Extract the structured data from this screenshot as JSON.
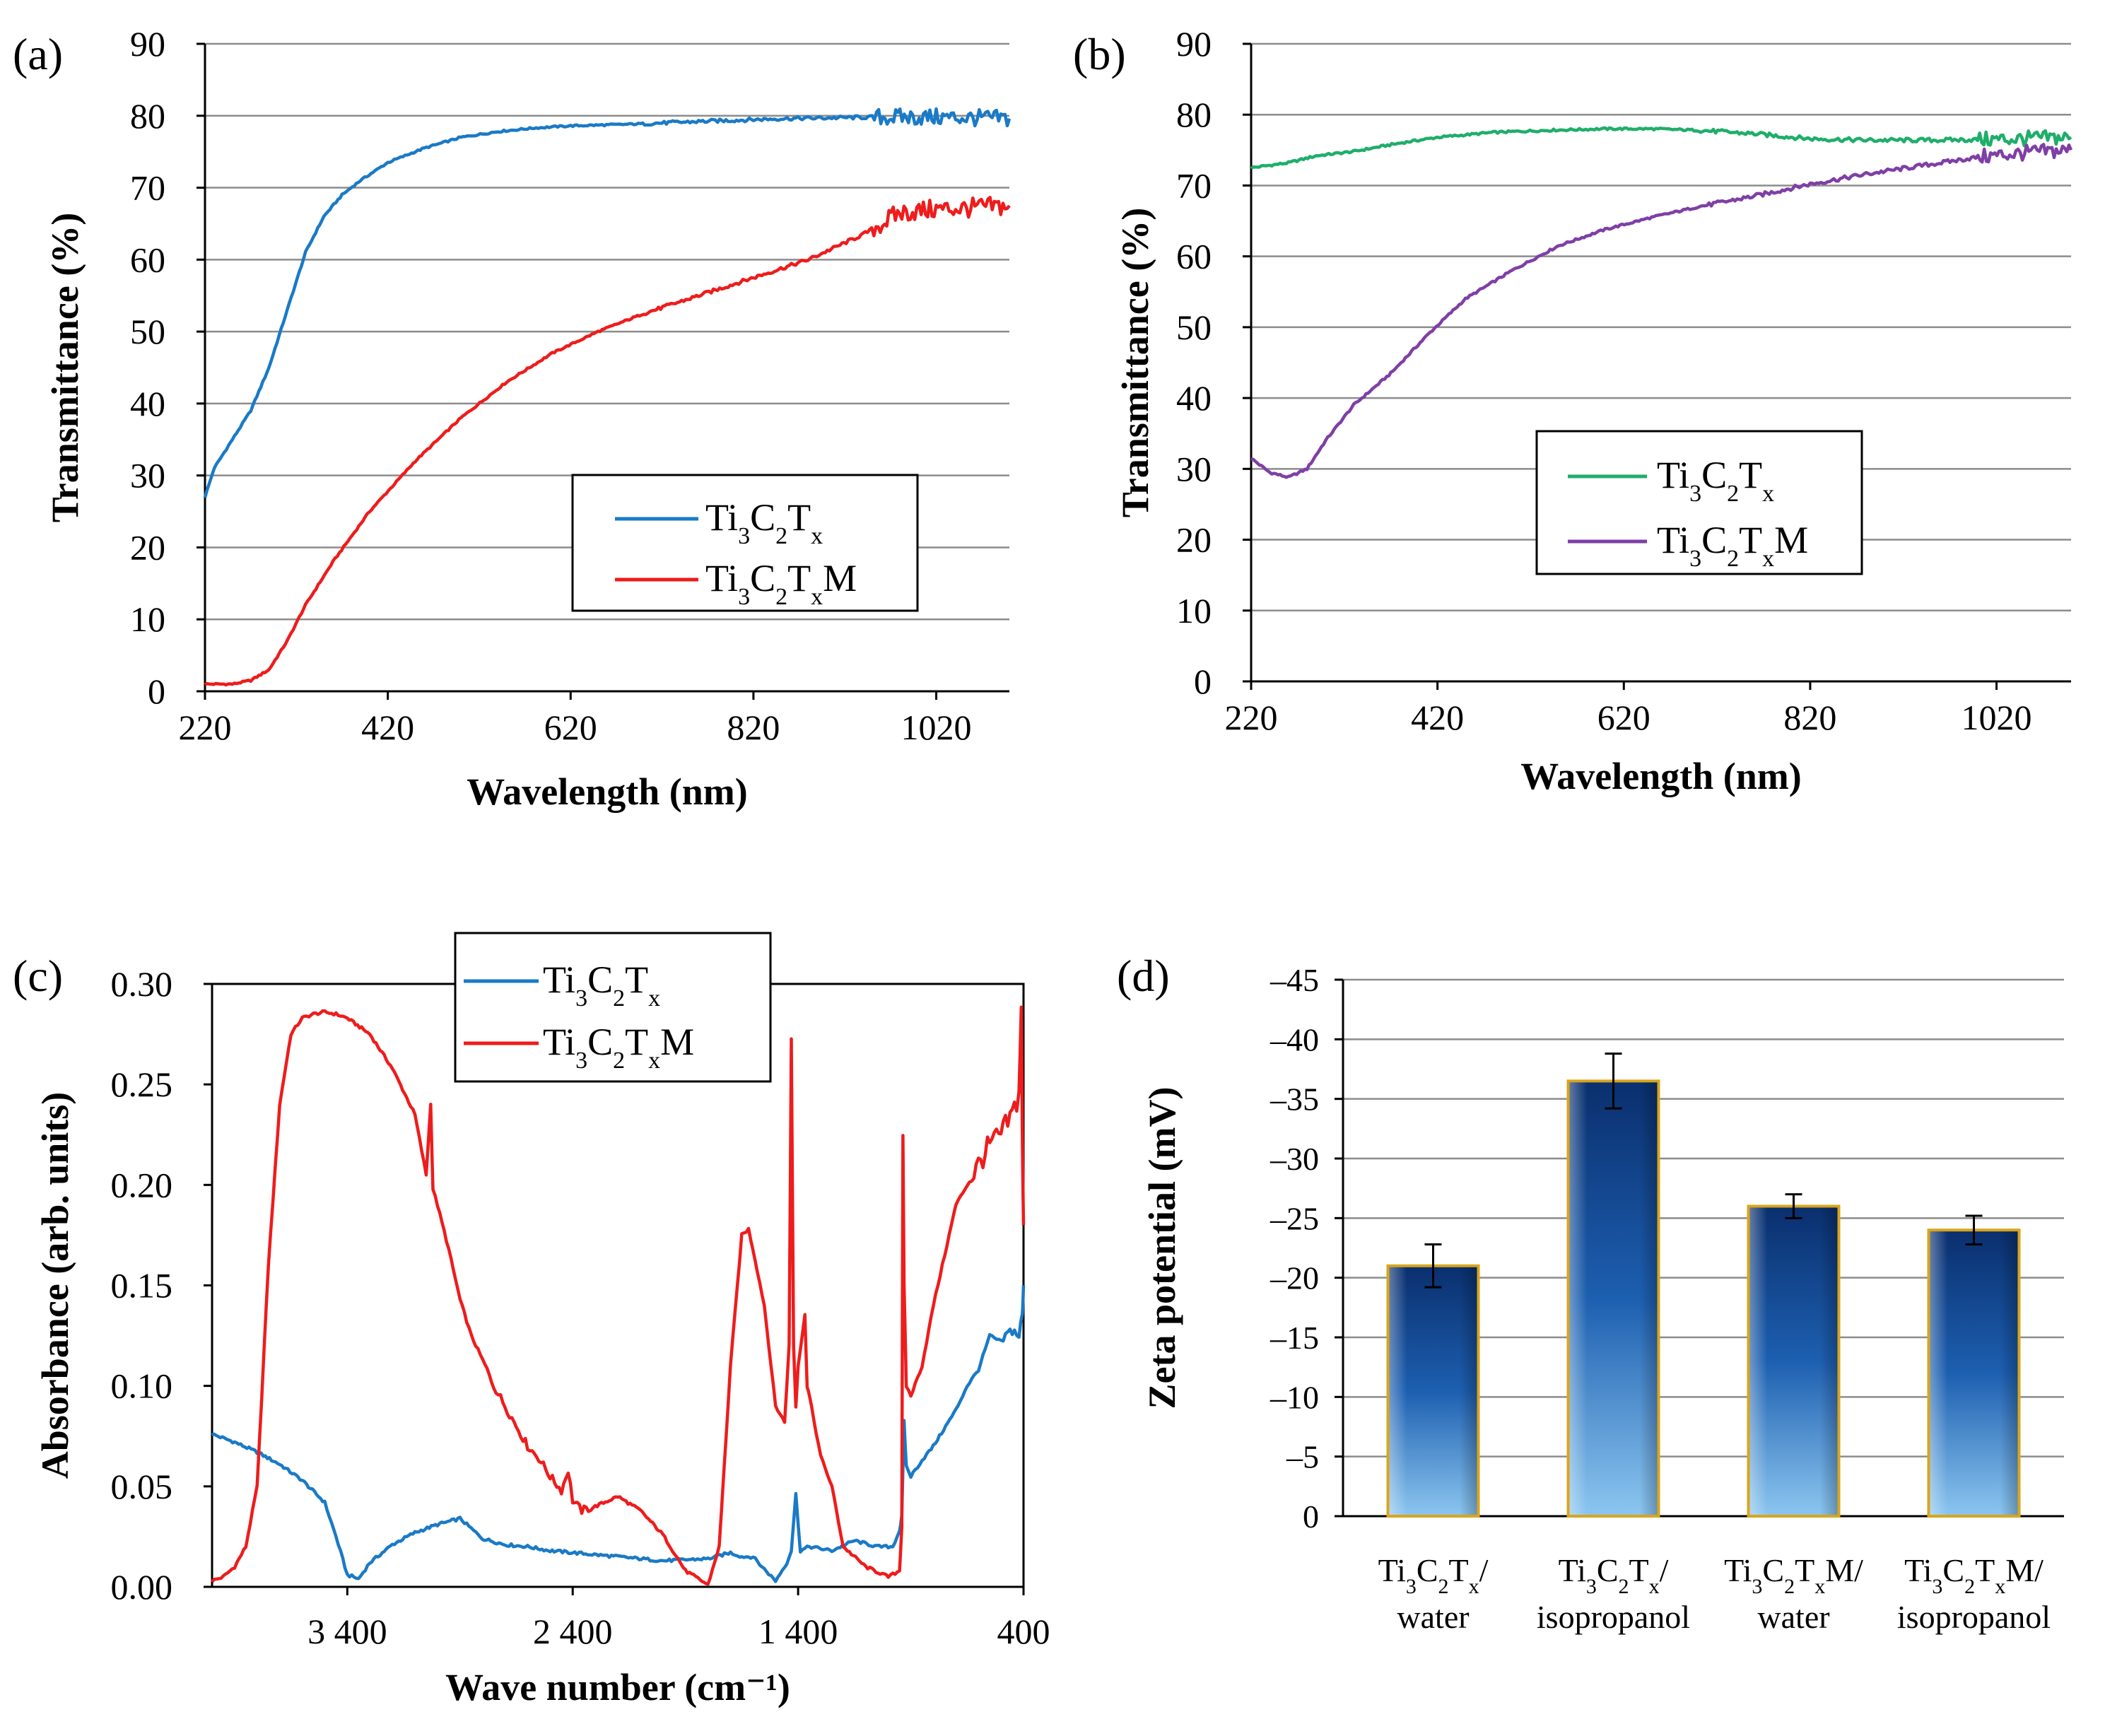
{
  "panels": [
    {
      "label": "(a)"
    },
    {
      "label": "(b)"
    },
    {
      "label": "(c)"
    },
    {
      "label": "(d)"
    }
  ],
  "chart_data": [
    {
      "id": "a",
      "type": "line",
      "title": "",
      "xlabel": "Wavelength (nm)",
      "ylabel": "Transmittance (%)",
      "xlim": [
        220,
        1100
      ],
      "ylim": [
        0,
        90
      ],
      "xticks": [
        220,
        420,
        620,
        820,
        1020
      ],
      "yticks": [
        0,
        10,
        20,
        30,
        40,
        50,
        60,
        70,
        80,
        90
      ],
      "grid": true,
      "legend_position": "lower-right",
      "series": [
        {
          "name": "Ti3C2Tx",
          "color": "#1a7ac6",
          "x": [
            220,
            230,
            250,
            270,
            290,
            310,
            330,
            350,
            370,
            390,
            420,
            460,
            500,
            540,
            580,
            620,
            680,
            760,
            850,
            950,
            1020,
            1060,
            1100
          ],
          "y": [
            27,
            31,
            35,
            39,
            45,
            53,
            61,
            66,
            69,
            71,
            73.5,
            75.5,
            77,
            77.8,
            78.3,
            78.6,
            78.8,
            79.2,
            79.6,
            79.8,
            79.8,
            79.7,
            79.6
          ]
        },
        {
          "name": "Ti3C2TxM",
          "color": "#ee1c1c",
          "x": [
            220,
            250,
            270,
            290,
            310,
            330,
            360,
            400,
            450,
            500,
            550,
            600,
            650,
            700,
            760,
            820,
            880,
            940,
            980,
            1020,
            1060,
            1100
          ],
          "y": [
            1,
            1,
            1.5,
            3,
            7,
            12,
            18,
            25,
            32,
            38,
            43,
            47,
            50,
            52.5,
            55,
            57.5,
            60,
            63.5,
            66.5,
            67,
            67.2,
            67.5
          ]
        }
      ]
    },
    {
      "id": "b",
      "type": "line",
      "title": "",
      "xlabel": "Wavelength (nm)",
      "ylabel": "Transmittance (%)",
      "xlim": [
        220,
        1100
      ],
      "ylim": [
        0,
        90
      ],
      "xticks": [
        220,
        420,
        620,
        820,
        1020
      ],
      "yticks": [
        0,
        10,
        20,
        30,
        40,
        50,
        60,
        70,
        80,
        90
      ],
      "grid": true,
      "legend_position": "center",
      "series": [
        {
          "name": "Ti3C2Tx",
          "color": "#1fae6a",
          "x": [
            220,
            260,
            290,
            330,
            380,
            420,
            480,
            540,
            600,
            650,
            700,
            760,
            820,
            880,
            950,
            1020,
            1100
          ],
          "y": [
            72.5,
            73.2,
            74.2,
            74.8,
            76,
            76.8,
            77.5,
            77.8,
            78,
            78,
            77.8,
            77.3,
            76.6,
            76.4,
            76.4,
            76.5,
            76.8
          ]
        },
        {
          "name": "Ti3C2TxM",
          "color": "#7f3fa6",
          "x": [
            220,
            240,
            260,
            280,
            300,
            330,
            370,
            410,
            450,
            500,
            550,
            600,
            650,
            700,
            760,
            820,
            880,
            940,
            1000,
            1050,
            1100
          ],
          "y": [
            31.5,
            29.5,
            28.8,
            30,
            34,
            39,
            43.5,
            49,
            54,
            58,
            61.5,
            63.8,
            65.5,
            67,
            68.5,
            70.2,
            71.6,
            72.8,
            74,
            74.6,
            75
          ]
        }
      ]
    },
    {
      "id": "c",
      "type": "line",
      "title": "",
      "xlabel": "Wave number (cm⁻¹)",
      "ylabel": "Absorbance (arb. units)",
      "xlim": [
        4000,
        400
      ],
      "ylim": [
        0,
        0.3
      ],
      "xticks": [
        3400,
        2400,
        1400,
        400
      ],
      "xtick_labels": [
        "3 400",
        "2 400",
        "1 400",
        "400"
      ],
      "yticks": [
        0.0,
        0.05,
        0.1,
        0.15,
        0.2,
        0.25,
        0.3
      ],
      "ytick_labels": [
        "0.00",
        "0.05",
        "0.10",
        "0.15",
        "0.20",
        "0.25",
        "0.30"
      ],
      "grid": false,
      "legend_position": "top-center",
      "series": [
        {
          "name": "Ti3C2Tx",
          "color": "#1a7ac6",
          "x": [
            4000,
            3900,
            3800,
            3700,
            3600,
            3500,
            3450,
            3400,
            3350,
            3300,
            3200,
            3100,
            3000,
            2900,
            2850,
            2800,
            2700,
            2600,
            2500,
            2400,
            2200,
            2000,
            1800,
            1700,
            1650,
            1600,
            1560,
            1500,
            1450,
            1430,
            1410,
            1390,
            1350,
            1250,
            1150,
            1050,
            980,
            950,
            940,
            930,
            920,
            900,
            850,
            800,
            700,
            650,
            600,
            550,
            500,
            450,
            420,
            405,
            400
          ],
          "y": [
            0.076,
            0.072,
            0.067,
            0.061,
            0.053,
            0.042,
            0.025,
            0.006,
            0.004,
            0.012,
            0.021,
            0.027,
            0.031,
            0.034,
            0.029,
            0.024,
            0.021,
            0.02,
            0.018,
            0.017,
            0.015,
            0.013,
            0.014,
            0.017,
            0.015,
            0.015,
            0.01,
            0.003,
            0.012,
            0.018,
            0.046,
            0.018,
            0.02,
            0.018,
            0.023,
            0.02,
            0.02,
            0.028,
            0.035,
            0.082,
            0.06,
            0.055,
            0.063,
            0.07,
            0.088,
            0.1,
            0.108,
            0.125,
            0.122,
            0.128,
            0.125,
            0.135,
            0.15
          ]
        },
        {
          "name": "Ti3C2TxM",
          "color": "#ee1c1c",
          "x": [
            4000,
            3950,
            3900,
            3850,
            3800,
            3750,
            3700,
            3650,
            3600,
            3550,
            3500,
            3450,
            3400,
            3300,
            3200,
            3100,
            3050,
            3030,
            3020,
            3000,
            2950,
            2900,
            2850,
            2800,
            2750,
            2700,
            2650,
            2600,
            2550,
            2500,
            2450,
            2420,
            2400,
            2360,
            2300,
            2200,
            2100,
            2000,
            1900,
            1800,
            1750,
            1700,
            1650,
            1620,
            1600,
            1550,
            1500,
            1460,
            1440,
            1430,
            1420,
            1410,
            1400,
            1370,
            1360,
            1350,
            1300,
            1250,
            1200,
            1100,
            1000,
            950,
            940,
            935,
            930,
            920,
            900,
            850,
            800,
            750,
            700,
            650,
            600,
            550,
            500,
            450,
            420,
            410,
            405,
            400
          ],
          "y": [
            0.003,
            0.005,
            0.01,
            0.02,
            0.05,
            0.16,
            0.24,
            0.275,
            0.283,
            0.285,
            0.286,
            0.285,
            0.283,
            0.275,
            0.258,
            0.235,
            0.205,
            0.24,
            0.198,
            0.19,
            0.168,
            0.143,
            0.125,
            0.113,
            0.1,
            0.09,
            0.08,
            0.07,
            0.064,
            0.055,
            0.048,
            0.058,
            0.043,
            0.038,
            0.04,
            0.045,
            0.038,
            0.026,
            0.008,
            0.001,
            0.02,
            0.11,
            0.175,
            0.178,
            0.168,
            0.14,
            0.09,
            0.082,
            0.12,
            0.273,
            0.12,
            0.09,
            0.11,
            0.135,
            0.1,
            0.095,
            0.065,
            0.05,
            0.02,
            0.01,
            0.005,
            0.008,
            0.03,
            0.225,
            0.15,
            0.1,
            0.095,
            0.11,
            0.14,
            0.165,
            0.19,
            0.2,
            0.21,
            0.22,
            0.225,
            0.235,
            0.245,
            0.29,
            0.22,
            0.18
          ]
        }
      ]
    },
    {
      "id": "d",
      "type": "bar",
      "title": "",
      "xlabel": "",
      "ylabel": "Zeta potential (mV)",
      "ylim": [
        0,
        -45
      ],
      "yticks": [
        0,
        -5,
        -10,
        -15,
        -20,
        -25,
        -30,
        -35,
        -40,
        -45
      ],
      "ytick_labels": [
        "0",
        "–5",
        "–10",
        "–15",
        "–20",
        "–25",
        "–30",
        "–35",
        "–40",
        "–45"
      ],
      "grid": true,
      "categories": [
        "Ti3C2Tx/ water",
        "Ti3C2Tx/ isopropanol",
        "Ti3C2TxM/ water",
        "Ti3C2TxM/ isopropanol"
      ],
      "category_lines": [
        {
          "line1": {
            "sym": "Ti3C2Tx",
            "suffix": "/"
          },
          "line2": "water"
        },
        {
          "line1": {
            "sym": "Ti3C2Tx",
            "suffix": "/"
          },
          "line2": "isopropanol"
        },
        {
          "line1": {
            "sym": "Ti3C2TxM",
            "suffix": "/"
          },
          "line2": "water"
        },
        {
          "line1": {
            "sym": "Ti3C2TxM",
            "suffix": "/"
          },
          "line2": "isopropanol"
        }
      ],
      "values": [
        -21,
        -36.5,
        -26,
        -24
      ],
      "errors": [
        1.8,
        2.3,
        1.0,
        1.2
      ],
      "bar_color": "#0a3a86",
      "bar_edge_color": "#d9a51c"
    }
  ]
}
